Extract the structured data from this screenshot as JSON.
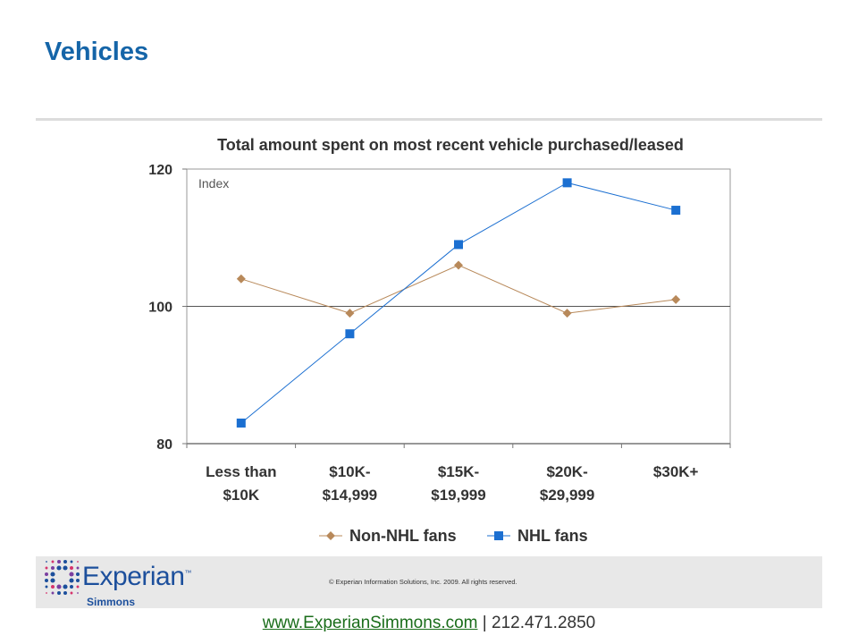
{
  "slide": {
    "title": "Vehicles"
  },
  "chart_data": {
    "type": "line",
    "title": "Total amount spent on most recent vehicle purchased/leased",
    "annotation": "Index",
    "xlabel": "",
    "ylabel": "",
    "ylim": [
      80,
      120
    ],
    "yticks": [
      80,
      100,
      120
    ],
    "baseline": 100,
    "categories": [
      [
        "Less than",
        "$10K"
      ],
      [
        "$10K-",
        "$14,999"
      ],
      [
        "$15K-",
        "$19,999"
      ],
      [
        "$20K-",
        "$29,999"
      ],
      [
        "$30K+"
      ]
    ],
    "series": [
      {
        "name": "Non-NHL fans",
        "marker": "diamond",
        "color": "#b8895a",
        "values": [
          104,
          99,
          106,
          99,
          101
        ]
      },
      {
        "name": "NHL fans",
        "marker": "square",
        "color": "#1b6fd1",
        "values": [
          83,
          96,
          109,
          118,
          114
        ]
      }
    ],
    "legend_position": "bottom"
  },
  "footer": {
    "logo_text": "Experian",
    "logo_tm": "™",
    "logo_subtext": "Simmons",
    "copyright": "© Experian Information Solutions, Inc. 2009.  All rights reserved.",
    "website": "www.ExperianSimmons.com",
    "separator": " | ",
    "phone": "212.471.2850"
  }
}
